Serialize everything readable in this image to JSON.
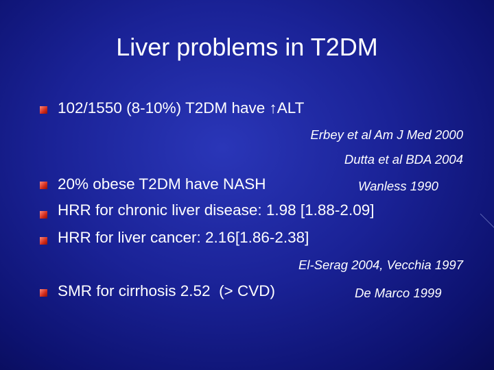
{
  "slide": {
    "title": "Liver problems in T2DM",
    "bullets": [
      {
        "text": "102/1550 (8-10%) T2DM have ↑ALT"
      },
      {
        "text": "20% obese T2DM have NASH",
        "citation": "Wanless 1990"
      },
      {
        "text": "HRR for chronic liver disease: 1.98 [1.88-2.09]"
      },
      {
        "text": "HRR for liver cancer: 2.16[1.86-2.38]"
      },
      {
        "text": "SMR for cirrhosis 2.52  (> CVD)",
        "citation": "De Marco 1999"
      }
    ],
    "references": [
      "Erbey et al Am J Med 2000",
      "Dutta et al BDA 2004",
      "El-Serag 2004, Vecchia 1997"
    ]
  }
}
